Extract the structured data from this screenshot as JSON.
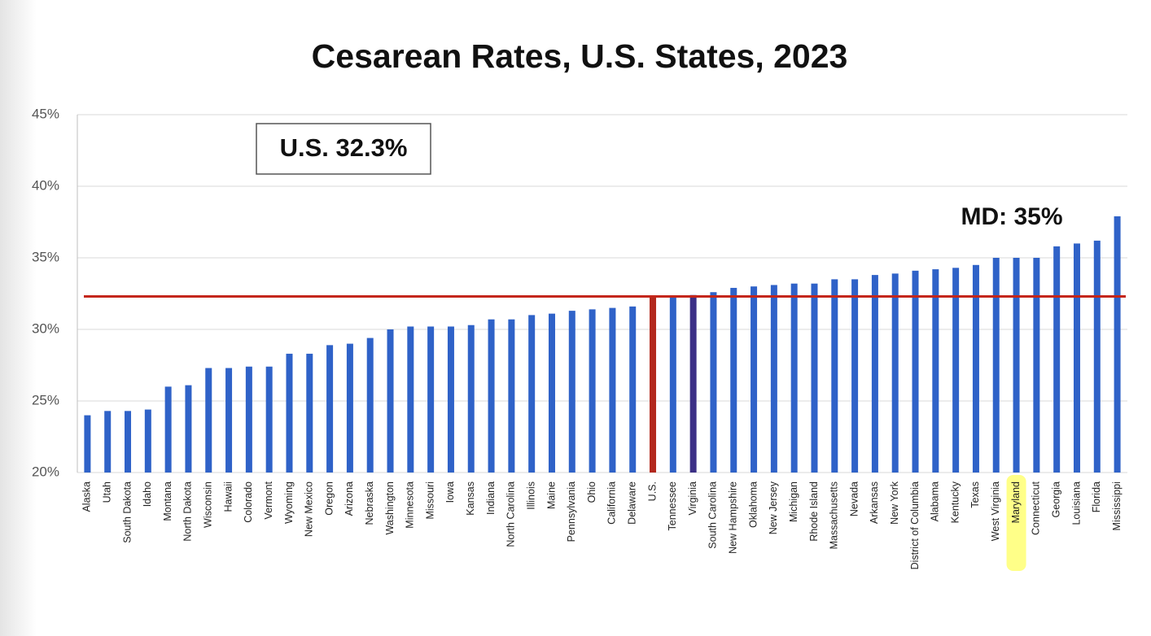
{
  "chart_data": {
    "type": "bar",
    "title": "Cesarean Rates, U.S. States, 2023",
    "categories": [
      "Alaska",
      "Utah",
      "South Dakota",
      "Idaho",
      "Montana",
      "North Dakota",
      "Wisconsin",
      "Hawaii",
      "Colorado",
      "Vermont",
      "Wyoming",
      "New Mexico",
      "Oregon",
      "Arizona",
      "Nebraska",
      "Washington",
      "Minnesota",
      "Missouri",
      "Iowa",
      "Kansas",
      "Indiana",
      "North Carolina",
      "Illinois",
      "Maine",
      "Pennsylvania",
      "Ohio",
      "California",
      "Delaware",
      "U.S.",
      "Tennessee",
      "Virginia",
      "South Carolina",
      "New Hampshire",
      "Oklahoma",
      "New Jersey",
      "Michigan",
      "Rhode Island",
      "Massachusetts",
      "Nevada",
      "Arkansas",
      "New York",
      "District of Columbia",
      "Alabama",
      "Kentucky",
      "Texas",
      "West Virginia",
      "Maryland",
      "Connecticut",
      "Georgia",
      "Louisiana",
      "Florida",
      "Mississippi"
    ],
    "values": [
      24.0,
      24.3,
      24.3,
      24.4,
      26.0,
      26.1,
      27.3,
      27.3,
      27.4,
      27.4,
      28.3,
      28.3,
      28.9,
      29.0,
      29.4,
      30.0,
      30.2,
      30.2,
      30.2,
      30.3,
      30.7,
      30.7,
      31.0,
      31.1,
      31.3,
      31.4,
      31.5,
      31.6,
      32.3,
      32.3,
      32.4,
      32.6,
      32.9,
      33.0,
      33.1,
      33.2,
      33.2,
      33.5,
      33.5,
      33.8,
      33.9,
      34.1,
      34.2,
      34.3,
      34.5,
      35.0,
      35.0,
      35.0,
      35.8,
      36.0,
      36.2,
      37.9
    ],
    "color": "#2f62c8",
    "bar_colors": {
      "U.S.": "#b3281d",
      "Virginia": "#3b2f86"
    },
    "ylim": [
      20,
      45
    ],
    "yticks": [
      {
        "value": 20,
        "label": "20%"
      },
      {
        "value": 25,
        "label": "25%"
      },
      {
        "value": 30,
        "label": "30%"
      },
      {
        "value": 35,
        "label": "35%"
      },
      {
        "value": 40,
        "label": "40%"
      },
      {
        "value": 45,
        "label": "45%"
      }
    ],
    "grid": true,
    "reference_line": {
      "value": 32.3,
      "color": "#c4261a",
      "label": "U.S. 32.3%"
    },
    "callout": {
      "text": "MD: 35%",
      "category": "Maryland",
      "highlight_color": "#ffff88"
    }
  }
}
